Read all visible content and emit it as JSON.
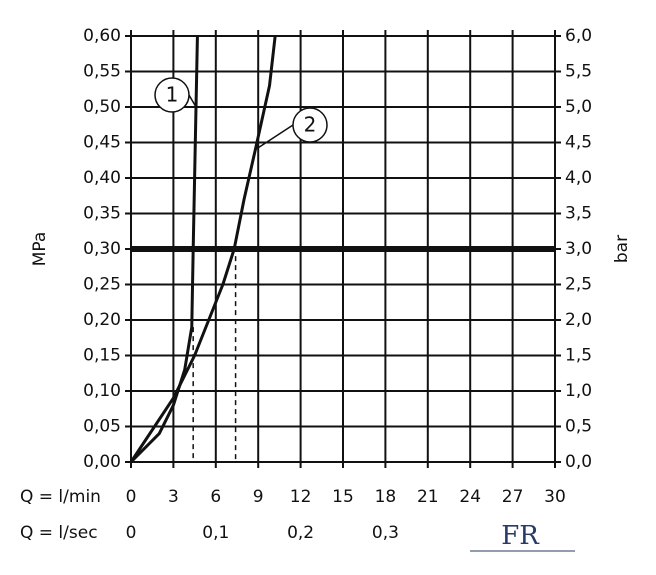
{
  "chart_data": {
    "type": "line",
    "x_label": "Q = l/min",
    "x2_label": "Q = l/sec",
    "y_label": "MPa",
    "y2_label": "bar",
    "logo": "FR",
    "xlim": [
      0,
      30
    ],
    "xticks": [
      0,
      3,
      6,
      9,
      12,
      15,
      18,
      21,
      24,
      27,
      30
    ],
    "x2lim": [
      0,
      0.5
    ],
    "x2ticks": [
      0,
      {
        "value": 0.1,
        "label": "0,1"
      },
      {
        "value": 0.2,
        "label": "0,2"
      },
      {
        "value": 0.3,
        "label": "0,3"
      }
    ],
    "ylim": [
      0,
      0.6
    ],
    "yticks": [
      {
        "value": 0,
        "label": "0,00"
      },
      {
        "value": 0.05,
        "label": "0,05"
      },
      {
        "value": 0.1,
        "label": "0,10"
      },
      {
        "value": 0.15,
        "label": "0,15"
      },
      {
        "value": 0.2,
        "label": "0,20"
      },
      {
        "value": 0.25,
        "label": "0,25"
      },
      {
        "value": 0.3,
        "label": "0,30"
      },
      {
        "value": 0.35,
        "label": "0,35"
      },
      {
        "value": 0.4,
        "label": "0,40"
      },
      {
        "value": 0.45,
        "label": "0,45"
      },
      {
        "value": 0.5,
        "label": "0,50"
      },
      {
        "value": 0.55,
        "label": "0,55"
      },
      {
        "value": 0.6,
        "label": "0,60"
      }
    ],
    "y2lim": [
      0,
      6
    ],
    "y2ticks": [
      {
        "value": 0,
        "label": "0,0"
      },
      {
        "value": 0.5,
        "label": "0,5"
      },
      {
        "value": 1,
        "label": "1,0"
      },
      {
        "value": 1.5,
        "label": "1,5"
      },
      {
        "value": 2,
        "label": "2,0"
      },
      {
        "value": 2.5,
        "label": "2,5"
      },
      {
        "value": 3,
        "label": "3,0"
      },
      {
        "value": 3.5,
        "label": "3,5"
      },
      {
        "value": 4,
        "label": "4,0"
      },
      {
        "value": 4.5,
        "label": "4,5"
      },
      {
        "value": 5,
        "label": "5,0"
      },
      {
        "value": 5.5,
        "label": "5,5"
      },
      {
        "value": 6,
        "label": "6,0"
      }
    ],
    "grid": true,
    "reference_line": 0.3,
    "series": [
      {
        "name": "1",
        "color": "#111111",
        "x": [
          0,
          2,
          3,
          3.8,
          4.3,
          4.4,
          4.6,
          4.7
        ],
        "values": [
          0,
          0.04,
          0.08,
          0.13,
          0.19,
          0.3,
          0.5,
          0.6
        ]
      },
      {
        "name": "2",
        "color": "#111111",
        "x": [
          0,
          3,
          4.5,
          5.5,
          6.5,
          7.3,
          8,
          8.8,
          9.8,
          10.2
        ],
        "values": [
          0,
          0.09,
          0.15,
          0.2,
          0.25,
          0.3,
          0.37,
          0.44,
          0.53,
          0.6
        ]
      }
    ],
    "drop_lines": [
      {
        "x": 4.4,
        "y": 0.19
      },
      {
        "x": 7.4,
        "y": 0.29
      }
    ]
  }
}
